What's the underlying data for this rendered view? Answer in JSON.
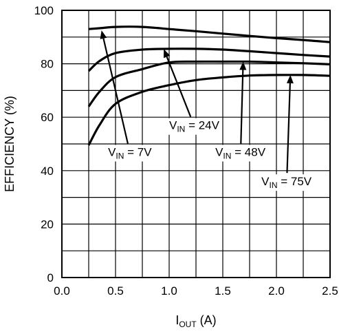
{
  "chart_data": {
    "type": "line",
    "xlabel": {
      "main": "I",
      "sub": "OUT",
      "unit": " (A)"
    },
    "ylabel": "EFFICIENCY (%)",
    "xlim": [
      0,
      2.5
    ],
    "ylim": [
      0,
      100
    ],
    "xticks": [
      0,
      0.5,
      1.0,
      1.5,
      2.0,
      2.5
    ],
    "xtick_labels": [
      "0.0",
      "0.5",
      "1.0",
      "1.5",
      "2.0",
      "2.5"
    ],
    "yticks": [
      0,
      20,
      40,
      60,
      80,
      100
    ],
    "ytick_labels": [
      "0",
      "20",
      "40",
      "60",
      "80",
      "100"
    ],
    "grid": true,
    "series": [
      {
        "x": [
          0.25,
          0.35,
          0.5,
          0.75,
          1.0,
          1.25,
          1.5,
          1.75,
          2.0,
          2.25,
          2.5
        ],
        "y": [
          93,
          93.3,
          93.8,
          93.8,
          93.0,
          92.2,
          91.3,
          90.4,
          89.6,
          88.9,
          88.1
        ]
      },
      {
        "x": [
          0.25,
          0.35,
          0.5,
          0.75,
          1.0,
          1.25,
          1.5,
          1.75,
          2.0,
          2.25,
          2.5
        ],
        "y": [
          77.3,
          81,
          84,
          85.3,
          85.6,
          85.6,
          85.3,
          84.7,
          84,
          83.3,
          82.7
        ]
      },
      {
        "x": [
          0.25,
          0.35,
          0.5,
          0.75,
          1.0,
          1.25,
          1.5,
          1.75,
          2.0,
          2.25,
          2.5
        ],
        "y": [
          64,
          69.5,
          75,
          78,
          80.5,
          80.8,
          80.8,
          80.8,
          80.5,
          80.2,
          79.8
        ]
      },
      {
        "x": [
          0.25,
          0.35,
          0.5,
          0.75,
          1.0,
          1.25,
          1.5,
          1.75,
          2.0,
          2.25,
          2.5
        ],
        "y": [
          49.5,
          57,
          65,
          69.5,
          72,
          73.9,
          74.9,
          75.6,
          75.8,
          75.8,
          75.5
        ]
      }
    ],
    "annotations": [
      {
        "v": "V",
        "sub": "IN",
        "rest": " = 7V",
        "label_x": 0.43,
        "label_y": 45.5,
        "arrow_to": [
          0.37,
          92.5
        ]
      },
      {
        "v": "V",
        "sub": "IN",
        "rest": " = 24V",
        "label_x": 1.0,
        "label_y": 55.5,
        "arrow_to": [
          0.95,
          85.5
        ]
      },
      {
        "v": "V",
        "sub": "IN",
        "rest": " = 48V",
        "label_x": 1.43,
        "label_y": 45.5,
        "arrow_to": [
          1.69,
          80.8
        ]
      },
      {
        "v": "V",
        "sub": "IN",
        "rest": " = 75V",
        "label_x": 1.86,
        "label_y": 34.5,
        "arrow_to": [
          2.13,
          75.8
        ]
      }
    ]
  }
}
